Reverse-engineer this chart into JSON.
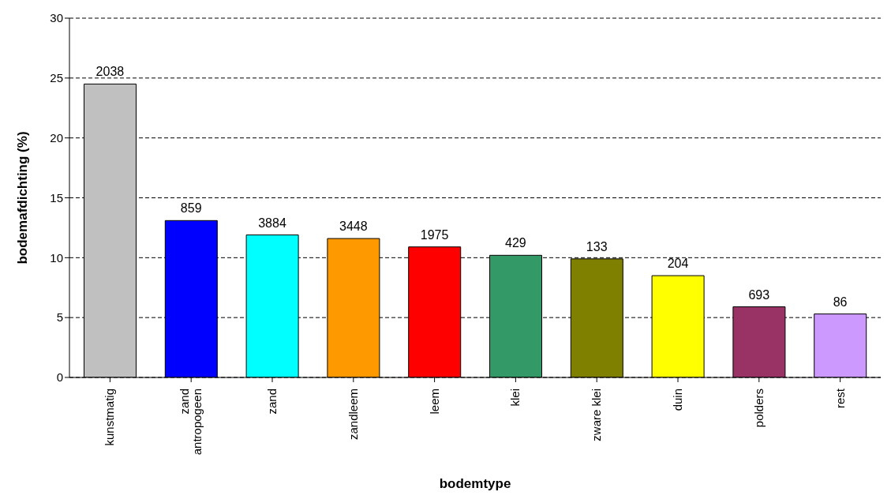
{
  "chart_data": {
    "type": "bar",
    "xlabel": "bodemtype",
    "ylabel": "bodemafdichting (%)",
    "categories": [
      "kunstmatig",
      "zand antropogeen",
      "zand",
      "zandleem",
      "leem",
      "klei",
      "zware klei",
      "duin",
      "polders",
      "rest"
    ],
    "values": [
      24.5,
      13.1,
      11.9,
      11.6,
      10.9,
      10.2,
      9.9,
      8.5,
      5.9,
      5.3
    ],
    "annotations": [
      {
        "text": "2038",
        "x": "kunstmatig",
        "y": 24.5
      },
      {
        "text": "859",
        "x": "zand antropogeen",
        "y": 13.1
      },
      {
        "text": "3884",
        "x": "zand",
        "y": 11.9
      },
      {
        "text": "3448",
        "x": "zandleem",
        "y": 11.6
      },
      {
        "text": "1975",
        "x": "leem",
        "y": 10.9
      },
      {
        "text": "429",
        "x": "klei",
        "y": 10.2
      },
      {
        "text": "133",
        "x": "zware klei",
        "y": 9.9
      },
      {
        "text": "204",
        "x": "duin",
        "y": 8.5
      },
      {
        "text": "693",
        "x": "polders",
        "y": 5.9
      },
      {
        "text": "86",
        "x": "rest",
        "y": 5.3
      }
    ],
    "colors": [
      "#c0c0c0",
      "#0000ff",
      "#00ffff",
      "#ff9900",
      "#ff0000",
      "#339966",
      "#808000",
      "#ffff00",
      "#993366",
      "#cc99ff"
    ],
    "ylim": [
      0,
      30
    ],
    "yticks": [
      0,
      5,
      10,
      15,
      20,
      25,
      30
    ],
    "grid": "y"
  }
}
